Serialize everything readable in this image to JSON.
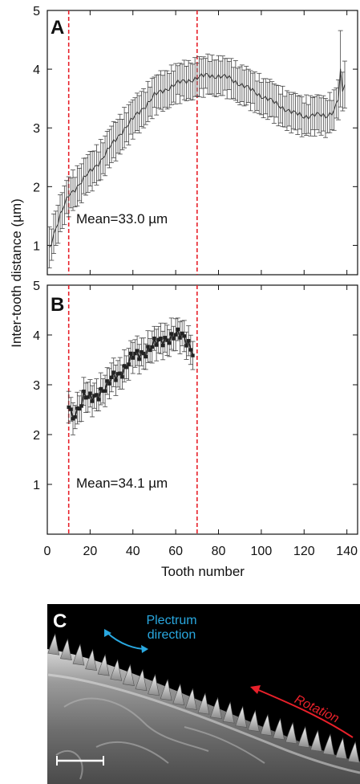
{
  "figure": {
    "ylabel": "Inter-tooth distance (µm)",
    "xlabel": "Tooth number"
  },
  "chart_data": [
    {
      "type": "line",
      "panel_label": "A",
      "annotation": "Mean=33.0 µm",
      "xlim": [
        0,
        145
      ],
      "ylim": [
        0.5,
        5
      ],
      "yticks": [
        1,
        2,
        3,
        4,
        5
      ],
      "xticks": [
        0,
        20,
        40,
        60,
        80,
        100,
        120,
        140
      ],
      "vlines": [
        10,
        70
      ],
      "error_bars": true,
      "knots": [
        [
          1,
          0.95
        ],
        [
          3,
          1.2
        ],
        [
          6,
          1.5
        ],
        [
          10,
          1.85
        ],
        [
          15,
          2.05
        ],
        [
          20,
          2.25
        ],
        [
          25,
          2.45
        ],
        [
          30,
          2.7
        ],
        [
          35,
          2.95
        ],
        [
          40,
          3.15
        ],
        [
          45,
          3.35
        ],
        [
          50,
          3.55
        ],
        [
          55,
          3.65
        ],
        [
          60,
          3.75
        ],
        [
          65,
          3.8
        ],
        [
          70,
          3.85
        ],
        [
          75,
          3.9
        ],
        [
          80,
          3.88
        ],
        [
          85,
          3.85
        ],
        [
          90,
          3.75
        ],
        [
          95,
          3.65
        ],
        [
          100,
          3.55
        ],
        [
          105,
          3.45
        ],
        [
          110,
          3.35
        ],
        [
          115,
          3.25
        ],
        [
          120,
          3.2
        ],
        [
          125,
          3.22
        ],
        [
          130,
          3.2
        ],
        [
          134,
          3.3
        ],
        [
          136,
          3.5
        ],
        [
          137,
          3.95
        ],
        [
          138,
          3.6
        ],
        [
          139,
          3.75
        ]
      ],
      "error": 0.3,
      "error_ends": [
        [
          1,
          0.35
        ],
        [
          137,
          0.65
        ],
        [
          139,
          0.4
        ]
      ]
    },
    {
      "type": "line",
      "panel_label": "B",
      "annotation": "Mean=34.1 µm",
      "xlim": [
        0,
        145
      ],
      "ylim": [
        0,
        5
      ],
      "yticks": [
        1,
        2,
        3,
        4,
        5
      ],
      "xticks": [
        0,
        20,
        40,
        60,
        80,
        100,
        120,
        140
      ],
      "xticklabels": [
        "0",
        "20",
        "40",
        "60",
        "80",
        "100",
        "120",
        "140"
      ],
      "vlines": [
        10,
        70
      ],
      "error_bars": true,
      "knots": [
        [
          10,
          2.6
        ],
        [
          11,
          2.5
        ],
        [
          12,
          2.3
        ],
        [
          13,
          2.5
        ],
        [
          15,
          2.55
        ],
        [
          17,
          2.75
        ],
        [
          20,
          2.7
        ],
        [
          23,
          2.8
        ],
        [
          25,
          2.9
        ],
        [
          28,
          2.95
        ],
        [
          30,
          3.1
        ],
        [
          33,
          3.2
        ],
        [
          36,
          3.35
        ],
        [
          40,
          3.55
        ],
        [
          43,
          3.6
        ],
        [
          46,
          3.7
        ],
        [
          50,
          3.8
        ],
        [
          53,
          3.85
        ],
        [
          56,
          3.95
        ],
        [
          60,
          4.0
        ],
        [
          63,
          3.95
        ],
        [
          66,
          3.85
        ],
        [
          68,
          3.7
        ]
      ],
      "error": 0.28
    }
  ],
  "panel_c": {
    "label": "C",
    "plectrum": "Plectrum\ndirection",
    "rotation": "Rotation",
    "colors": {
      "plectrum": "#29a8e0",
      "rotation": "#e8202a",
      "background": "#000000"
    }
  },
  "colors": {
    "guide": "#e8202a",
    "data": "#222222",
    "axis": "#111111"
  }
}
